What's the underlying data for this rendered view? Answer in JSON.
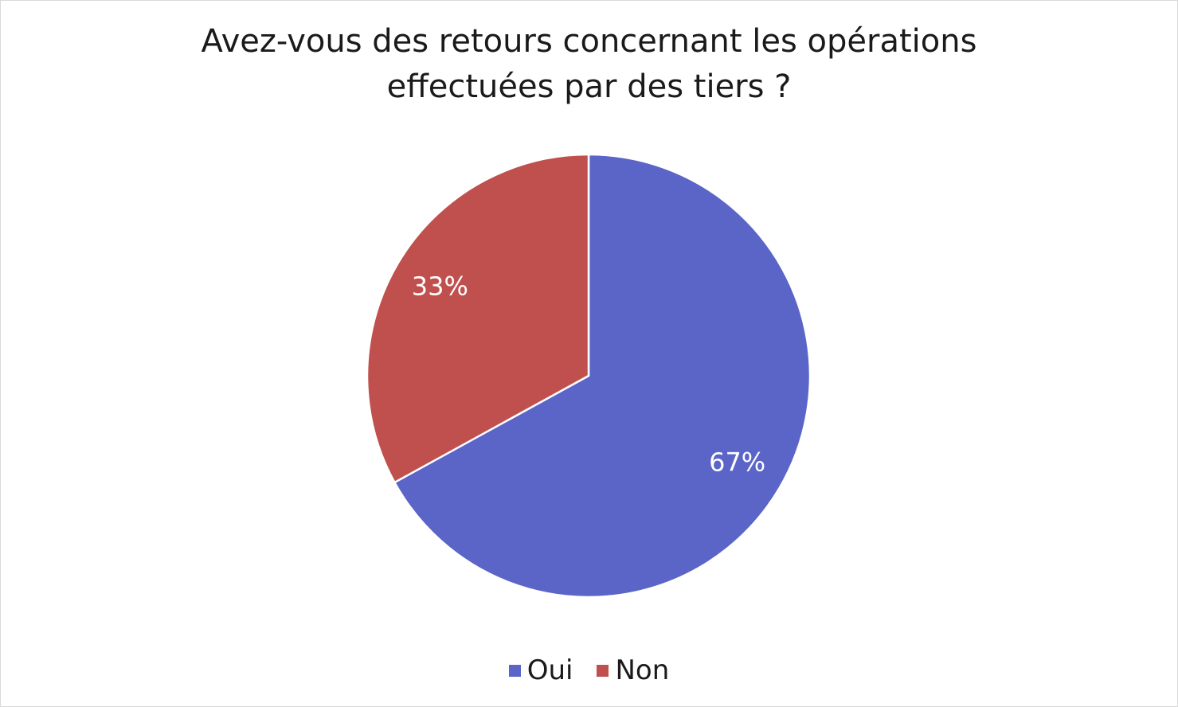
{
  "colors": {
    "oui": "#5B65C8",
    "non": "#C0504D",
    "slice_border": "#ffffff"
  },
  "chart_data": {
    "type": "pie",
    "title_lines": [
      "Avez-vous des retours concernant les opérations",
      "effectuées par des tiers ?"
    ],
    "categories": [
      "Oui",
      "Non"
    ],
    "values": [
      67,
      33
    ],
    "data_labels": [
      "67%",
      "33%"
    ],
    "legend_position": "bottom",
    "start_angle": "12 o'clock",
    "direction": "clockwise"
  }
}
